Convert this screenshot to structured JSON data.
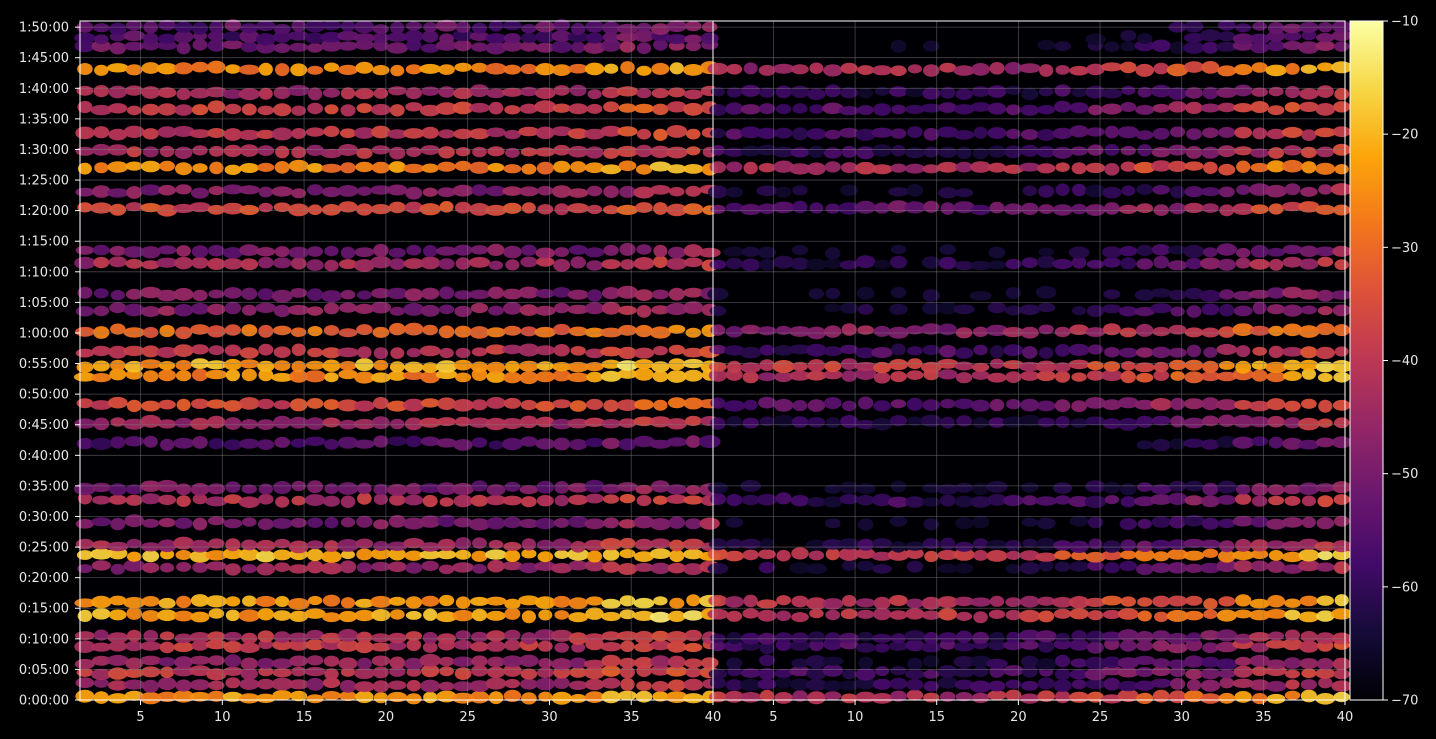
{
  "chart_data": {
    "type": "heatmap",
    "title": "",
    "xlabel": "",
    "ylabel": "",
    "theme": {
      "background": "#000000",
      "grid": "#808080",
      "text": "#e8e8e8",
      "colormap": "inferno"
    },
    "panels": [
      {
        "name": "",
        "xlim": [
          1.3,
          40
        ],
        "x_ticks": [
          5,
          10,
          15,
          20,
          25,
          30,
          35,
          40
        ],
        "x_tick_labels": [
          "5",
          "10",
          "15",
          "20",
          "25",
          "30",
          "35",
          "40"
        ],
        "density": 1.0
      },
      {
        "name": "",
        "xlim": [
          1.3,
          40
        ],
        "x_ticks": [
          5,
          10,
          15,
          20,
          25,
          30,
          35,
          40
        ],
        "x_tick_labels": [
          "5",
          "10",
          "15",
          "20",
          "25",
          "30",
          "35",
          "40"
        ],
        "density": 0.6
      }
    ],
    "y_range_seconds": [
      0,
      6660
    ],
    "y_ticks_seconds": [
      0,
      300,
      600,
      900,
      1200,
      1500,
      1800,
      2100,
      2400,
      2700,
      3000,
      3300,
      3600,
      3900,
      4200,
      4500,
      4800,
      5100,
      5400,
      5700,
      6000,
      6300,
      6600
    ],
    "y_tick_labels": [
      "0:00:00",
      "0:05:00",
      "0:10:00",
      "0:15:00",
      "0:20:00",
      "0:25:00",
      "0:30:00",
      "0:35:00",
      "0:40:00",
      "0:45:00",
      "0:50:00",
      "0:55:00",
      "1:00:00",
      "1:05:00",
      "1:10:00",
      "1:15:00",
      "1:20:00",
      "1:25:00",
      "1:30:00",
      "1:35:00",
      "1:40:00",
      "1:45:00",
      "1:50:00"
    ],
    "grid": true,
    "colorbar": {
      "range": [
        -70,
        -10
      ],
      "ticks": [
        -70,
        -60,
        -50,
        -40,
        -30,
        -20,
        -10
      ],
      "tick_labels": [
        "−70",
        "−60",
        "−50",
        "−40",
        "−30",
        "−20",
        "−10"
      ]
    },
    "intensity_bands": [
      {
        "t": 30,
        "level": -24
      },
      {
        "t": 150,
        "level": -44
      },
      {
        "t": 270,
        "level": -40
      },
      {
        "t": 370,
        "level": -46
      },
      {
        "t": 530,
        "level": -40
      },
      {
        "t": 620,
        "level": -42
      },
      {
        "t": 830,
        "level": -22
      },
      {
        "t": 960,
        "level": -24
      },
      {
        "t": 1300,
        "level": -46
      },
      {
        "t": 1420,
        "level": -21
      },
      {
        "t": 1520,
        "level": -44
      },
      {
        "t": 1740,
        "level": -50
      },
      {
        "t": 1960,
        "level": -42
      },
      {
        "t": 2080,
        "level": -50
      },
      {
        "t": 2520,
        "level": -56
      },
      {
        "t": 2720,
        "level": -44
      },
      {
        "t": 2900,
        "level": -36
      },
      {
        "t": 3180,
        "level": -25
      },
      {
        "t": 3280,
        "level": -22
      },
      {
        "t": 3420,
        "level": -40
      },
      {
        "t": 3620,
        "level": -30
      },
      {
        "t": 3830,
        "level": -48
      },
      {
        "t": 3980,
        "level": -50
      },
      {
        "t": 4280,
        "level": -44
      },
      {
        "t": 4400,
        "level": -50
      },
      {
        "t": 4820,
        "level": -36
      },
      {
        "t": 4990,
        "level": -48
      },
      {
        "t": 5220,
        "level": -26
      },
      {
        "t": 5380,
        "level": -42
      },
      {
        "t": 5560,
        "level": -40
      },
      {
        "t": 5800,
        "level": -38
      },
      {
        "t": 5960,
        "level": -44
      },
      {
        "t": 6190,
        "level": -26
      },
      {
        "t": 6410,
        "level": -52
      },
      {
        "t": 6500,
        "level": -56
      },
      {
        "t": 6600,
        "level": -54
      }
    ]
  }
}
